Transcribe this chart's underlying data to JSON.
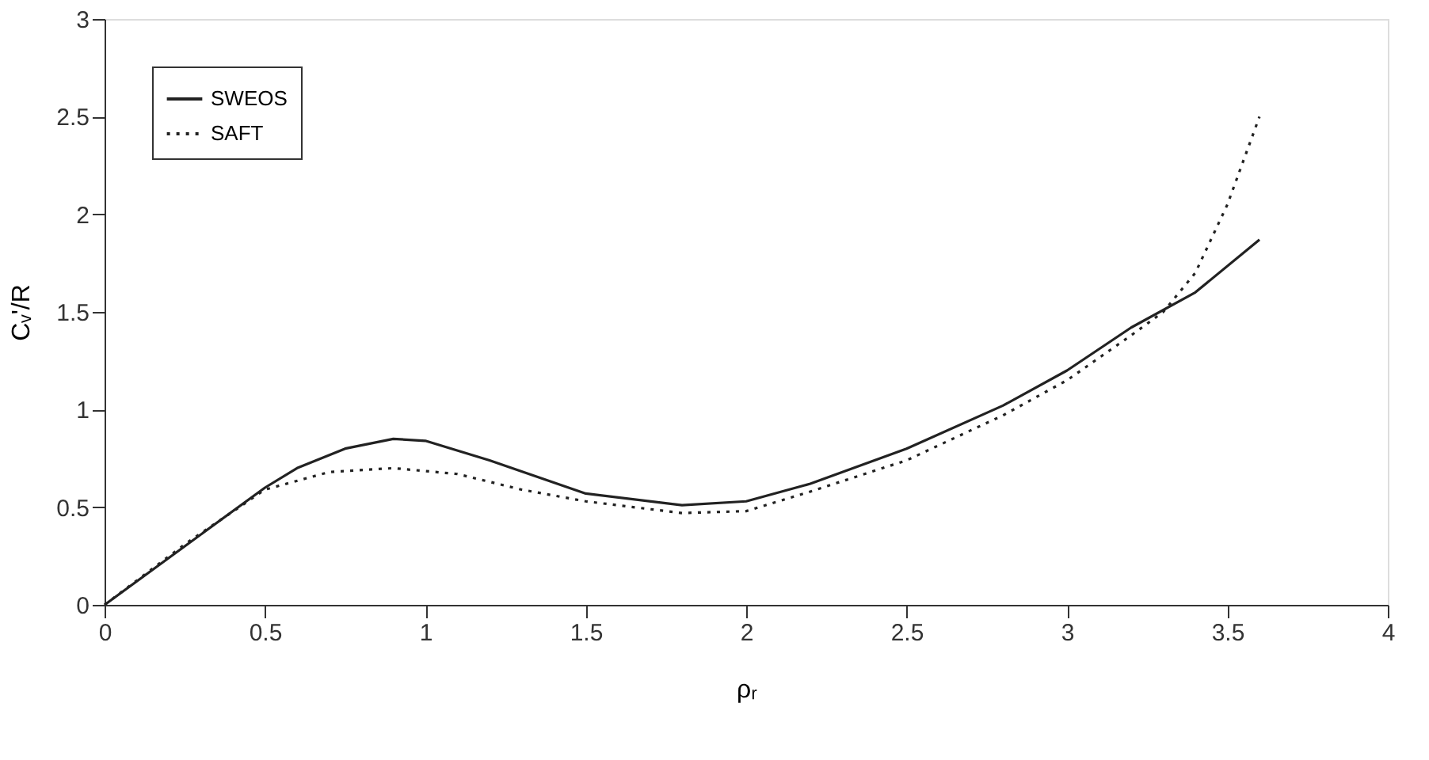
{
  "chart_data": {
    "type": "line",
    "xlabel": "ρᵣ",
    "ylabel": "Cᵥ'/R",
    "xlim": [
      0,
      4
    ],
    "xticks": [
      0,
      0.5,
      1,
      1.5,
      2,
      2.5,
      3,
      3.5,
      4
    ],
    "ylim": [
      0,
      3
    ],
    "yticks": [
      0,
      0.5,
      1,
      1.5,
      2,
      2.5,
      3
    ],
    "grid": false,
    "legend": "top left",
    "marker": "none",
    "series": [
      {
        "name": "SWEOS",
        "color": "#222222",
        "line_style": "solid",
        "x": [
          0,
          0.25,
          0.5,
          0.6,
          0.75,
          0.9,
          1.0,
          1.2,
          1.5,
          1.8,
          2.0,
          2.2,
          2.5,
          2.8,
          3.0,
          3.2,
          3.4,
          3.6
        ],
        "values": [
          0,
          0.3,
          0.6,
          0.7,
          0.8,
          0.85,
          0.84,
          0.74,
          0.57,
          0.51,
          0.53,
          0.62,
          0.8,
          1.02,
          1.2,
          1.42,
          1.6,
          1.87
        ]
      },
      {
        "name": "SAFT",
        "color": "#222222",
        "line_style": "dotted",
        "x": [
          0,
          0.25,
          0.5,
          0.7,
          0.9,
          1.1,
          1.3,
          1.5,
          1.8,
          2.0,
          2.2,
          2.5,
          2.8,
          3.0,
          3.2,
          3.3,
          3.4,
          3.5,
          3.6
        ],
        "values": [
          0,
          0.31,
          0.59,
          0.68,
          0.7,
          0.67,
          0.59,
          0.53,
          0.47,
          0.48,
          0.58,
          0.74,
          0.97,
          1.15,
          1.38,
          1.5,
          1.7,
          2.05,
          2.5
        ]
      }
    ]
  }
}
